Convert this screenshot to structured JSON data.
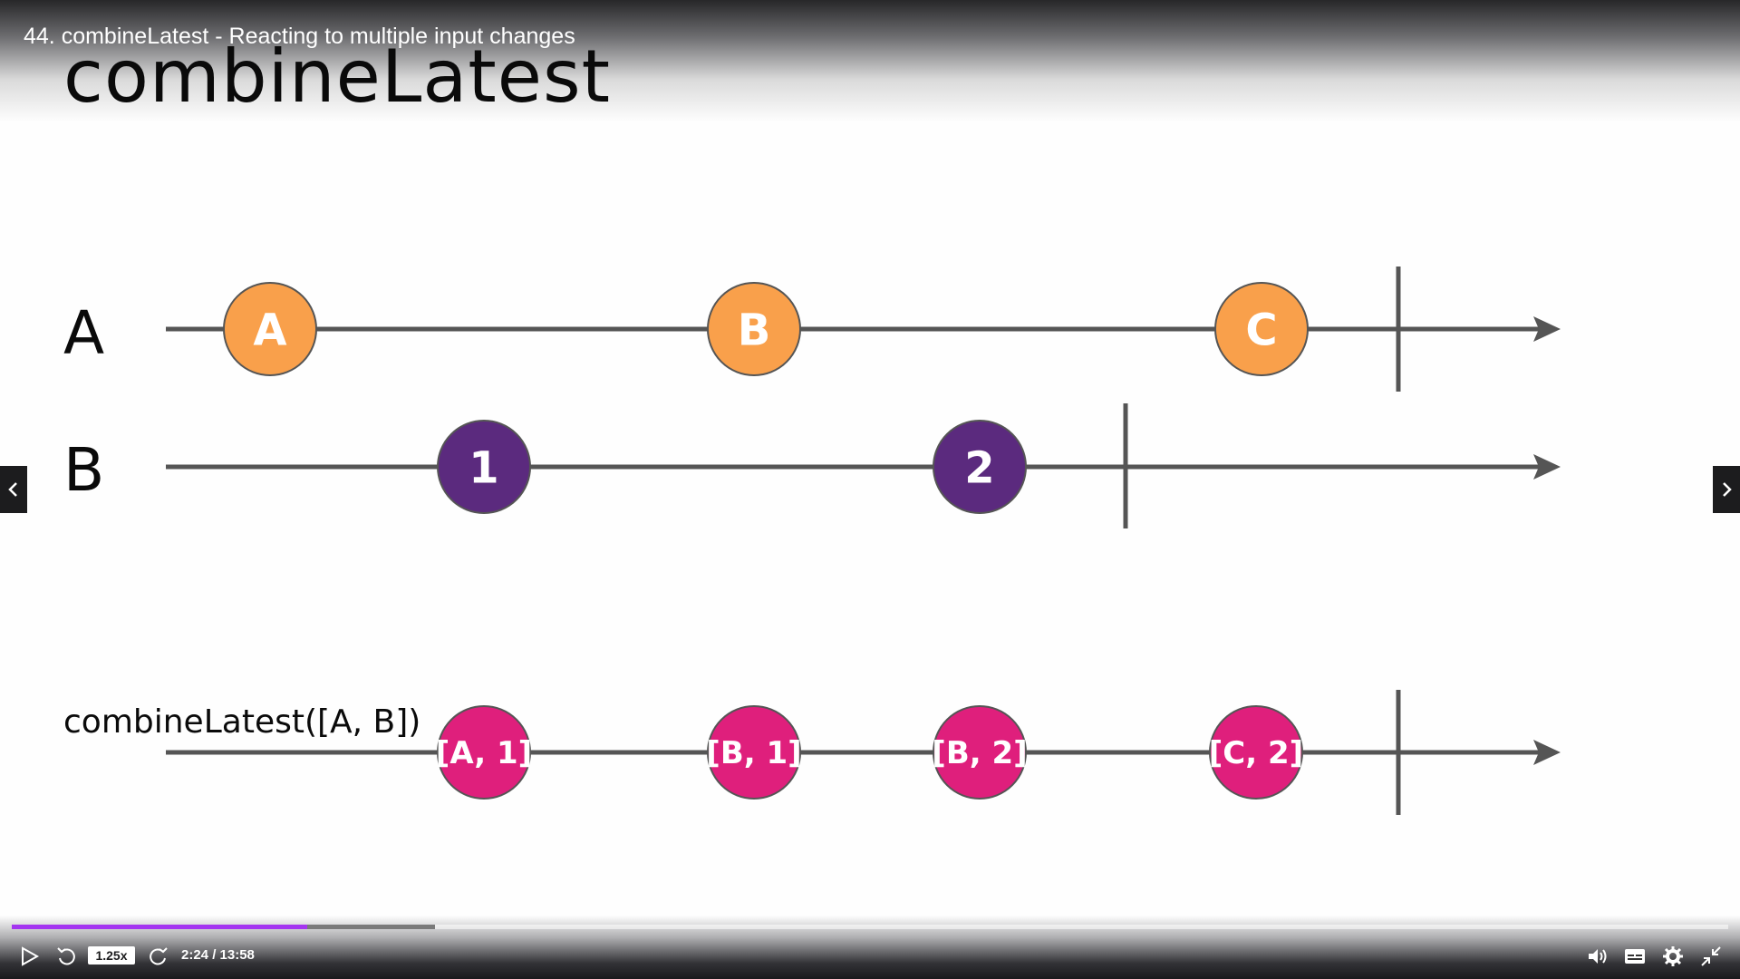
{
  "lecture": {
    "title": "44. combineLatest - Reacting to multiple input changes"
  },
  "slide": {
    "title": "combineLatest",
    "streams": [
      {
        "label": "A",
        "color": "#f9a04b",
        "marbles": [
          "A",
          "B",
          "C"
        ]
      },
      {
        "label": "B",
        "color": "#5b2a7e",
        "marbles": [
          "1",
          "2"
        ]
      },
      {
        "label": "combineLatest([A, B])",
        "color": "#df1f7c",
        "marbles": [
          "[A, 1]",
          "[B, 1]",
          "[B, 2]",
          "[C, 2]"
        ]
      }
    ],
    "line_color": "#555555",
    "marble_border": "#555555"
  },
  "navigation": {
    "prev_icon": "chevron-left-icon",
    "next_icon": "chevron-right-icon"
  },
  "player": {
    "speed": "1.25x",
    "time": "2:24 / 13:58",
    "progress_fraction": 0.172,
    "buffered_fraction": 0.2467,
    "accent_color": "#a435f0",
    "icons": [
      "play-icon",
      "rewind-icon",
      "forward-icon",
      "volume-icon",
      "captions-icon",
      "settings-icon",
      "fullscreen-exit-icon"
    ]
  }
}
